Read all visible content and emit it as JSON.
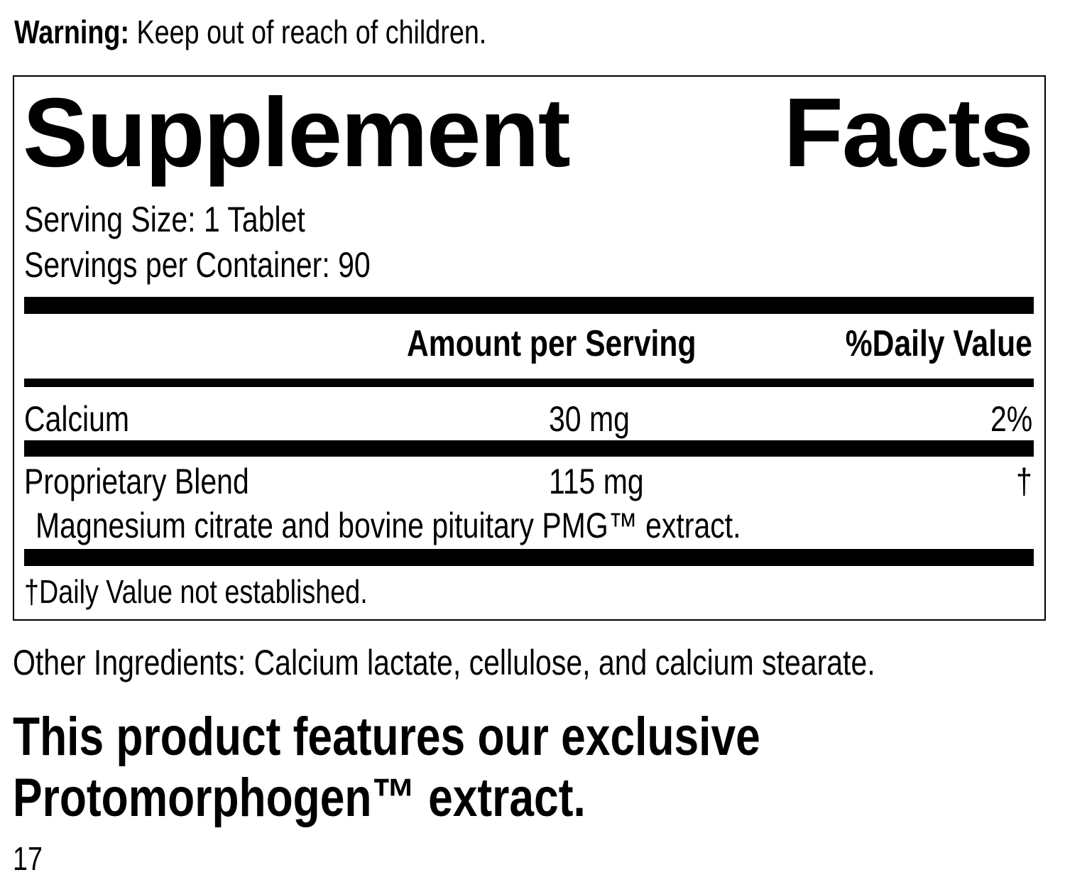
{
  "warning": {
    "label": "Warning:",
    "text": "Keep out of reach of children."
  },
  "facts": {
    "title_left": "Supplement",
    "title_right": "Facts",
    "serving_size": "Serving Size: 1 Tablet",
    "servings_per_container": "Servings per Container: 90",
    "header": {
      "amount": "Amount per Serving",
      "daily_value": "%Daily Value"
    },
    "rows": [
      {
        "name": "Calcium",
        "amount": "30 mg",
        "dv": "2%"
      },
      {
        "name": "Proprietary Blend",
        "amount": "115 mg",
        "dv": "†",
        "detail": "Magnesium citrate and bovine pituitary PMG™ extract."
      }
    ],
    "footnote": "†Daily Value not established."
  },
  "other_ingredients": "Other Ingredients: Calcium lactate, cellulose, and calcium stearate.",
  "feature_line1": "This product features our exclusive",
  "feature_line2": "Protomorphogen™ extract.",
  "page_number": "17"
}
